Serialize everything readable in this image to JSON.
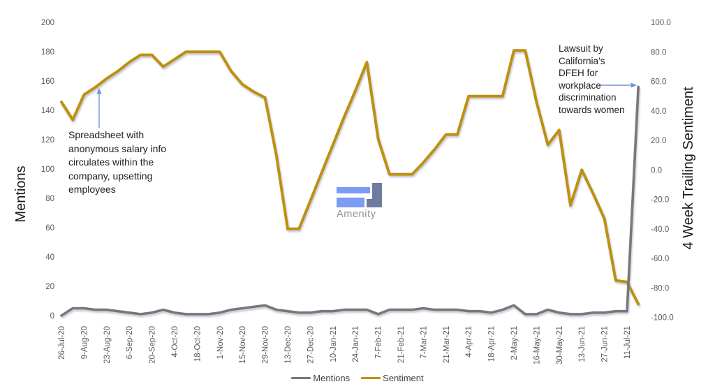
{
  "chart_data": {
    "type": "line",
    "title": "",
    "grid": false,
    "legend_position": "bottom",
    "categories": [
      "26-Jul-20",
      "2-Aug-20",
      "9-Aug-20",
      "16-Aug-20",
      "23-Aug-20",
      "30-Aug-20",
      "6-Sep-20",
      "13-Sep-20",
      "20-Sep-20",
      "27-Sep-20",
      "4-Oct-20",
      "11-Oct-20",
      "18-Oct-20",
      "25-Oct-20",
      "1-Nov-20",
      "8-Nov-20",
      "15-Nov-20",
      "22-Nov-20",
      "29-Nov-20",
      "6-Dec-20",
      "13-Dec-20",
      "20-Dec-20",
      "27-Dec-20",
      "3-Jan-21",
      "10-Jan-21",
      "17-Jan-21",
      "24-Jan-21",
      "31-Jan-21",
      "7-Feb-21",
      "14-Feb-21",
      "21-Feb-21",
      "28-Feb-21",
      "7-Mar-21",
      "14-Mar-21",
      "21-Mar-21",
      "28-Mar-21",
      "4-Apr-21",
      "11-Apr-21",
      "18-Apr-21",
      "25-Apr-21",
      "2-May-21",
      "9-May-21",
      "16-May-21",
      "23-May-21",
      "30-May-21",
      "6-Jun-21",
      "13-Jun-21",
      "20-Jun-21",
      "27-Jun-21",
      "4-Jul-21",
      "11-Jul-21",
      "18-Jul-21"
    ],
    "x_tick_labels": [
      "26-Jul-20",
      "9-Aug-20",
      "23-Aug-20",
      "6-Sep-20",
      "20-Sep-20",
      "4-Oct-20",
      "18-Oct-20",
      "1-Nov-20",
      "15-Nov-20",
      "29-Nov-20",
      "13-Dec-20",
      "27-Dec-20",
      "10-Jan-21",
      "24-Jan-21",
      "7-Feb-21",
      "21-Feb-21",
      "7-Mar-21",
      "21-Mar-21",
      "4-Apr-21",
      "18-Apr-21",
      "2-May-21",
      "16-May-21",
      "30-May-21",
      "13-Jun-21",
      "27-Jun-21",
      "11-Jul-21"
    ],
    "series": [
      {
        "name": "Sentiment",
        "axis": "right",
        "color": "#BF9010",
        "values": [
          46,
          34,
          51,
          56,
          62,
          67,
          73,
          78,
          78,
          70,
          75,
          80,
          80,
          80,
          80,
          67,
          58,
          53,
          49,
          10,
          -40,
          -40,
          -21,
          -2,
          17,
          36,
          54,
          73,
          21,
          -3,
          -3,
          -3,
          5,
          14,
          24,
          24,
          50,
          50,
          50,
          50,
          81,
          81,
          46,
          17,
          27,
          -24,
          0,
          -16,
          -33,
          -75,
          -76,
          -91
        ]
      },
      {
        "name": "Mentions",
        "axis": "left",
        "color": "#787878",
        "values": [
          0,
          5,
          5,
          4,
          4,
          3,
          2,
          1,
          2,
          4,
          2,
          1,
          1,
          1,
          2,
          4,
          5,
          6,
          7,
          4,
          3,
          2,
          2,
          3,
          3,
          4,
          4,
          4,
          1,
          4,
          4,
          4,
          5,
          4,
          4,
          4,
          3,
          3,
          2,
          4,
          7,
          1,
          1,
          4,
          2,
          1,
          1,
          2,
          2,
          3,
          3,
          156
        ]
      }
    ],
    "left_axis": {
      "label": "Mentions",
      "min": 0,
      "max": 200,
      "tick_step": 20,
      "ticks": [
        "0",
        "20",
        "40",
        "60",
        "80",
        "100",
        "120",
        "140",
        "160",
        "180",
        "200"
      ]
    },
    "right_axis": {
      "label": "4 Week Trailing Sentiment",
      "min": -100,
      "max": 100,
      "tick_step": 20,
      "ticks": [
        "-100.0",
        "-80.0",
        "-60.0",
        "-40.0",
        "-20.0",
        "0.0",
        "20.0",
        "40.0",
        "60.0",
        "80.0",
        "100.0"
      ]
    }
  },
  "annotations": [
    {
      "text": "Spreadsheet with anonymous salary info circulates within the company, upsetting employees",
      "arrow": "up"
    },
    {
      "text": "Lawsuit by California’s DFEH for workplace discrimination towards women",
      "arrow": "right"
    }
  ],
  "legend": {
    "items": [
      {
        "label": "Mentions",
        "color": "#787878"
      },
      {
        "label": "Sentiment",
        "color": "#BF9010"
      }
    ]
  },
  "watermark": {
    "text": "Amenity",
    "logo_blue": "#7E9BF2",
    "logo_slate": "#6E7B9C"
  },
  "colors": {
    "annotation_arrow": "#6F95DB",
    "tick_text": "#595959",
    "background": "#ffffff"
  }
}
